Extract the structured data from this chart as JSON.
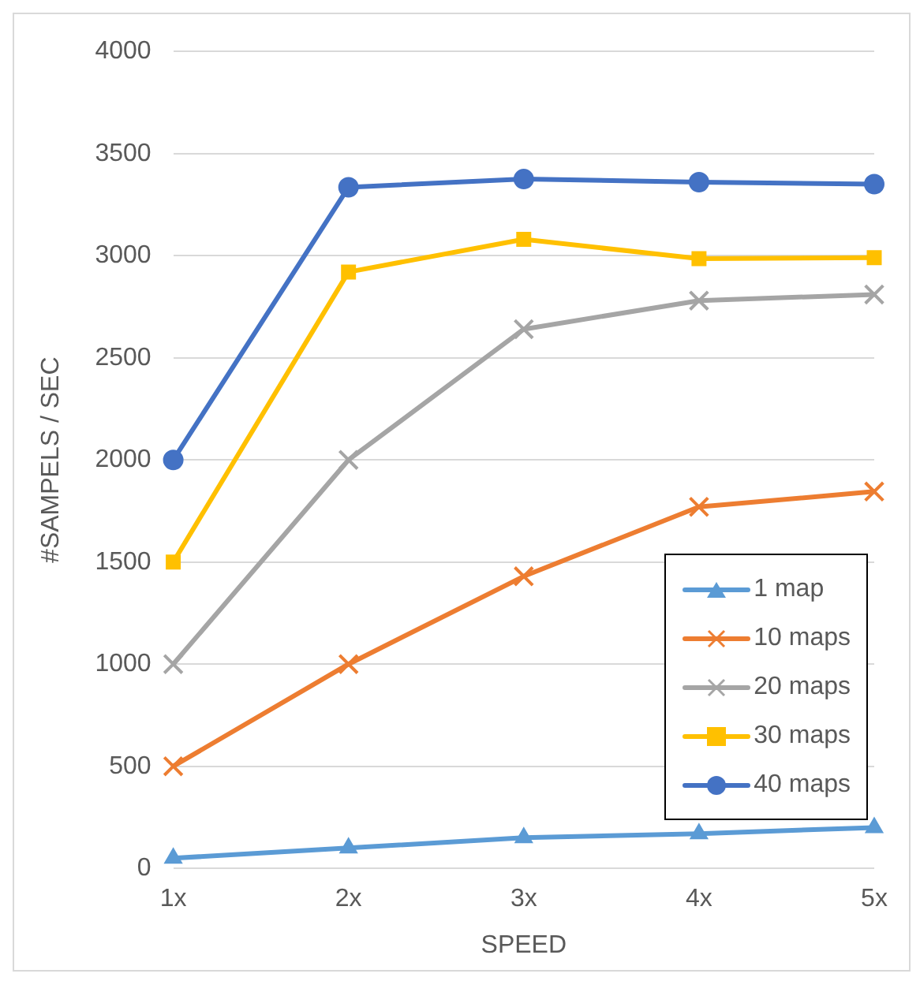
{
  "chart_data": {
    "type": "line",
    "xlabel": "SPEED",
    "ylabel": "#SAMPELS / SEC",
    "categories": [
      "1x",
      "2x",
      "3x",
      "4x",
      "5x"
    ],
    "series": [
      {
        "name": "1 map",
        "color": "#5b9bd5",
        "marker": "triangle",
        "values": [
          50,
          100,
          150,
          170,
          200
        ]
      },
      {
        "name": "10 maps",
        "color": "#ed7d31",
        "marker": "cross",
        "values": [
          500,
          1000,
          1430,
          1770,
          1845
        ]
      },
      {
        "name": "20 maps",
        "color": "#a5a5a5",
        "marker": "cross",
        "values": [
          1000,
          2000,
          2640,
          2780,
          2810
        ]
      },
      {
        "name": "30 maps",
        "color": "#ffc000",
        "marker": "square",
        "values": [
          1500,
          2920,
          3080,
          2985,
          2990
        ]
      },
      {
        "name": "40 maps",
        "color": "#4472c4",
        "marker": "circle",
        "values": [
          2000,
          3335,
          3375,
          3360,
          3350
        ]
      }
    ],
    "ylim": [
      0,
      4000
    ],
    "yticks": [
      0,
      500,
      1000,
      1500,
      2000,
      2500,
      3000,
      3500,
      4000
    ],
    "grid": "y",
    "legend": "right",
    "line_style": "solid"
  }
}
